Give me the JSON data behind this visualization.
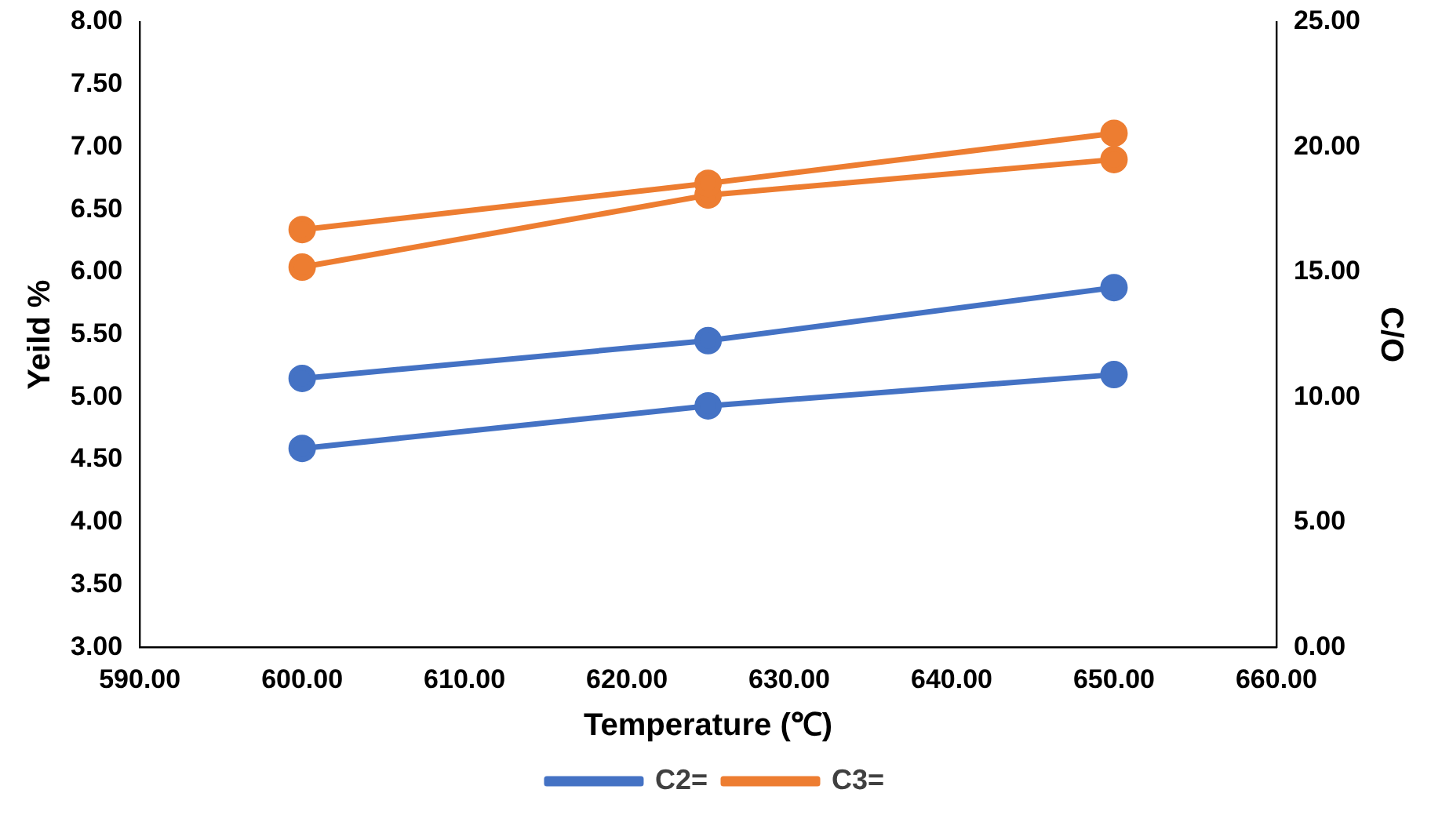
{
  "chart_data": {
    "type": "line",
    "xlabel": "Temperature (℃)",
    "ylabel": "Yeild %",
    "y2label": "C/O",
    "xlim": [
      590,
      660
    ],
    "xticks": [
      {
        "value": 590,
        "label": "590.00"
      },
      {
        "value": 600,
        "label": "600.00"
      },
      {
        "value": 610,
        "label": "610.00"
      },
      {
        "value": 620,
        "label": "620.00"
      },
      {
        "value": 630,
        "label": "630.00"
      },
      {
        "value": 640,
        "label": "640.00"
      },
      {
        "value": 650,
        "label": "650.00"
      },
      {
        "value": 660,
        "label": "660.00"
      }
    ],
    "ylim": [
      3,
      8
    ],
    "yticks": [
      {
        "value": 3,
        "label": "3.00"
      },
      {
        "value": 3.5,
        "label": "3.50"
      },
      {
        "value": 4,
        "label": "4.00"
      },
      {
        "value": 4.5,
        "label": "4.50"
      },
      {
        "value": 5,
        "label": "5.00"
      },
      {
        "value": 5.5,
        "label": "5.50"
      },
      {
        "value": 6,
        "label": "6.00"
      },
      {
        "value": 6.5,
        "label": "6.50"
      },
      {
        "value": 7,
        "label": "7.00"
      },
      {
        "value": 7.5,
        "label": "7.50"
      },
      {
        "value": 8,
        "label": "8.00"
      }
    ],
    "y2lim": [
      0,
      25
    ],
    "y2ticks": [
      {
        "value": 0,
        "label": "0.00"
      },
      {
        "value": 5,
        "label": "5.00"
      },
      {
        "value": 10,
        "label": "10.00"
      },
      {
        "value": 15,
        "label": "15.00"
      },
      {
        "value": 20,
        "label": "20.00"
      },
      {
        "value": 25,
        "label": "25.00"
      }
    ],
    "x": [
      600,
      625,
      650
    ],
    "grid": false,
    "legend": "bottom",
    "marker": "circle",
    "line_style": "solid",
    "series": [
      {
        "name": "C2=",
        "color": "#4472c4",
        "values": [
          4.59,
          4.93,
          5.18
        ]
      },
      {
        "name": "C3=",
        "color": "#ed7d31",
        "values": [
          6.34,
          6.71,
          7.11
        ]
      },
      {
        "color": "#4472c4",
        "axis": "y2",
        "values": [
          10.75,
          12.26,
          14.38
        ]
      },
      {
        "color": "#ed7d31",
        "axis": "y2",
        "values": [
          15.2,
          18.08,
          19.5
        ]
      }
    ]
  }
}
